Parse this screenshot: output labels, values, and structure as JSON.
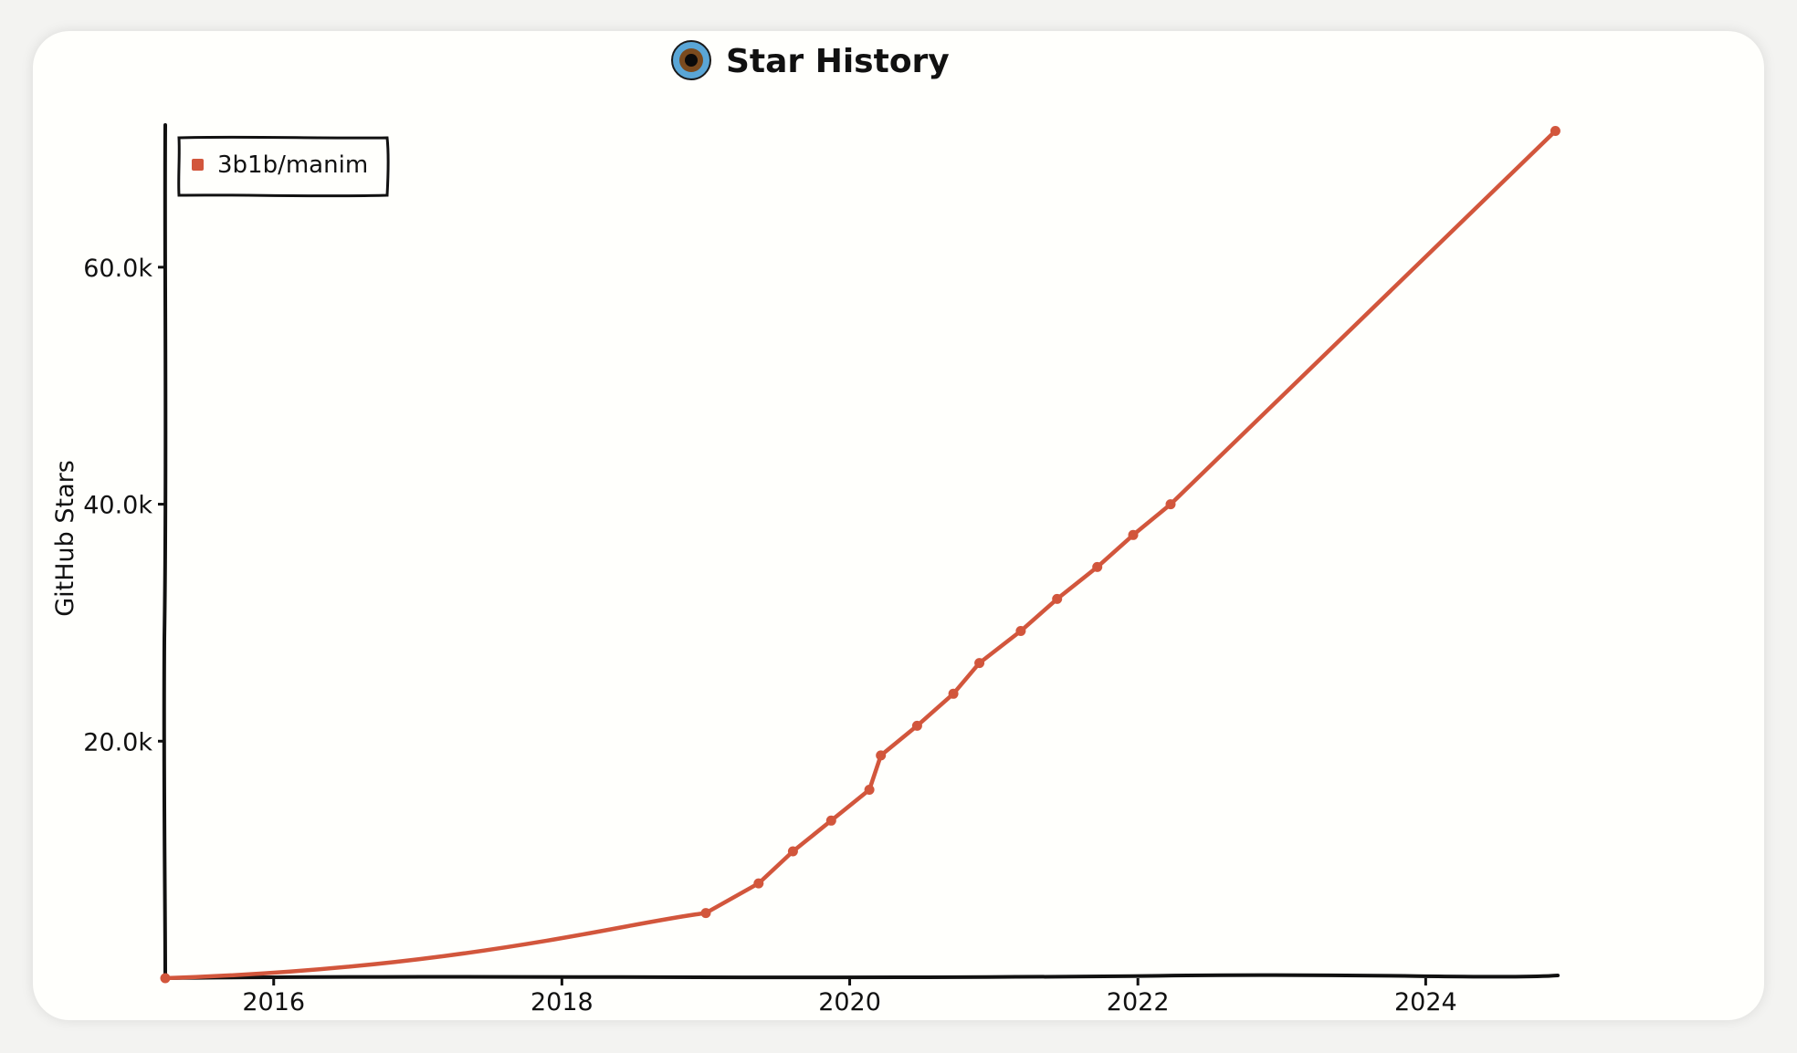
{
  "chart_data": {
    "type": "line",
    "title": "Star History",
    "ylabel": "GitHub Stars",
    "xlabel": "",
    "xlim": [
      "2015-04-01",
      "2024-12-01"
    ],
    "ylim": [
      0,
      72000
    ],
    "xticks": [
      {
        "date": "2016-01-01",
        "label": "2016"
      },
      {
        "date": "2018-01-01",
        "label": "2018"
      },
      {
        "date": "2020-01-01",
        "label": "2020"
      },
      {
        "date": "2022-01-01",
        "label": "2022"
      },
      {
        "date": "2024-01-01",
        "label": "2024"
      }
    ],
    "yticks": [
      {
        "value": 20000,
        "label": "20.0k"
      },
      {
        "value": 40000,
        "label": "40.0k"
      },
      {
        "value": 60000,
        "label": "60.0k"
      }
    ],
    "grid": false,
    "legend_position": "top-left",
    "series": [
      {
        "name": "3b1b/manim",
        "color": "#d2563c",
        "points": [
          {
            "x": "2015-04-01",
            "y": 0
          },
          {
            "x": "2019-01-01",
            "y": 5500
          },
          {
            "x": "2019-05-15",
            "y": 8000
          },
          {
            "x": "2019-08-10",
            "y": 10700
          },
          {
            "x": "2019-11-15",
            "y": 13300
          },
          {
            "x": "2020-02-20",
            "y": 15900
          },
          {
            "x": "2020-03-20",
            "y": 18800
          },
          {
            "x": "2020-06-20",
            "y": 21300
          },
          {
            "x": "2020-09-20",
            "y": 24000
          },
          {
            "x": "2020-11-25",
            "y": 26600
          },
          {
            "x": "2021-03-10",
            "y": 29300
          },
          {
            "x": "2021-06-10",
            "y": 32000
          },
          {
            "x": "2021-09-20",
            "y": 34700
          },
          {
            "x": "2021-12-20",
            "y": 37400
          },
          {
            "x": "2022-03-25",
            "y": 40000
          },
          {
            "x": "2024-11-25",
            "y": 71500
          }
        ]
      }
    ]
  }
}
